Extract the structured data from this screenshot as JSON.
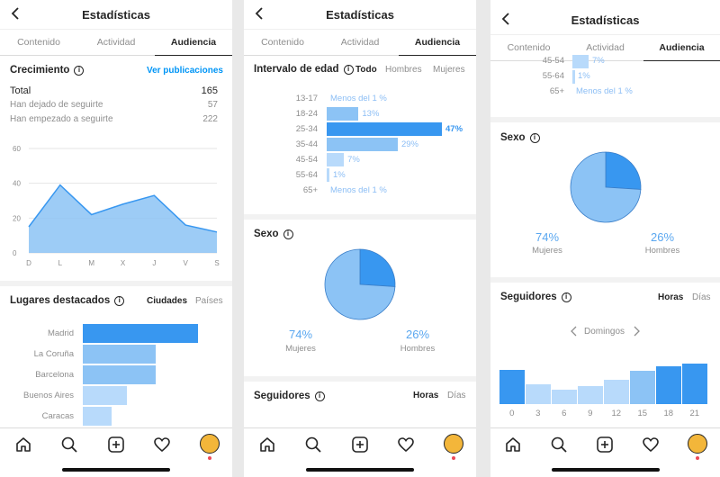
{
  "app": {
    "title": "Estadísticas",
    "tabs": [
      "Contenido",
      "Actividad",
      "Audiencia"
    ],
    "active_tab": "Audiencia"
  },
  "panel1": {
    "growth": {
      "title": "Crecimiento",
      "link": "Ver publicaciones",
      "total_label": "Total",
      "total_value": "165",
      "unfollowed_label": "Han dejado de seguirte",
      "unfollowed_value": "57",
      "followed_label": "Han empezado a seguirte",
      "followed_value": "222"
    },
    "chart_data": {
      "type": "area",
      "categories": [
        "D",
        "L",
        "M",
        "X",
        "J",
        "V",
        "S"
      ],
      "values": [
        15,
        39,
        22,
        28,
        33,
        16,
        12
      ],
      "ylim": [
        0,
        60
      ],
      "yticks": [
        "0",
        "20",
        "40",
        "60"
      ],
      "grid": true,
      "color": "#8cc3f5"
    },
    "places": {
      "title": "Lugares destacados",
      "toggle": [
        "Ciudades",
        "Países"
      ],
      "chart_data": {
        "type": "bar",
        "orientation": "horizontal",
        "categories": [
          "Madrid",
          "La Coruña",
          "Barcelona",
          "Buenos Aires",
          "Caracas"
        ],
        "values": [
          100,
          63,
          63,
          38,
          25
        ],
        "colors": [
          "#3897f0",
          "#8cc3f5",
          "#8cc3f5",
          "#b8dafb",
          "#b8dafb"
        ]
      }
    }
  },
  "panel2": {
    "age": {
      "title": "Intervalo de edad",
      "toggle": [
        "Todo",
        "Hombres",
        "Mujeres"
      ],
      "chart_data": {
        "type": "bar",
        "orientation": "horizontal",
        "categories": [
          "13-17",
          "18-24",
          "25-34",
          "35-44",
          "45-54",
          "55-64",
          "65+"
        ],
        "values": [
          0.5,
          13,
          47,
          29,
          7,
          1,
          0.5
        ],
        "labels": [
          "Menos del 1 %",
          "13%",
          "47%",
          "29%",
          "7%",
          "1%",
          "Menos del 1 %"
        ]
      }
    },
    "sex": {
      "title": "Sexo",
      "chart_data": {
        "type": "pie",
        "categories": [
          "Mujeres",
          "Hombres"
        ],
        "values": [
          74,
          26
        ],
        "labels": [
          "74%",
          "26%"
        ],
        "colors": [
          "#8cc3f5",
          "#3897f0"
        ]
      }
    },
    "followers": {
      "title": "Seguidores",
      "toggle": [
        "Horas",
        "Días"
      ]
    }
  },
  "panel3": {
    "age_tail": {
      "categories": [
        "45-54",
        "55-64",
        "65+"
      ],
      "labels": [
        "7%",
        "1%",
        "Menos del 1 %"
      ]
    },
    "sex": {
      "title": "Sexo",
      "labels": [
        "74%",
        "26%"
      ],
      "categories": [
        "Mujeres",
        "Hombres"
      ]
    },
    "followers": {
      "title": "Seguidores",
      "toggle": [
        "Horas",
        "Días"
      ],
      "day": "Domingos",
      "chart_data": {
        "type": "bar",
        "categories": [
          "0",
          "3",
          "6",
          "9",
          "12",
          "15",
          "18",
          "21"
        ],
        "values": [
          80,
          46,
          33,
          42,
          56,
          77,
          87,
          93
        ],
        "colors": [
          "#3897f0",
          "#b8dafb",
          "#b8dafb",
          "#b8dafb",
          "#b8dafb",
          "#8cc3f5",
          "#3897f0",
          "#3897f0"
        ]
      }
    }
  },
  "nav": [
    "home-icon",
    "search-icon",
    "add-icon",
    "heart-icon",
    "profile-avatar"
  ]
}
